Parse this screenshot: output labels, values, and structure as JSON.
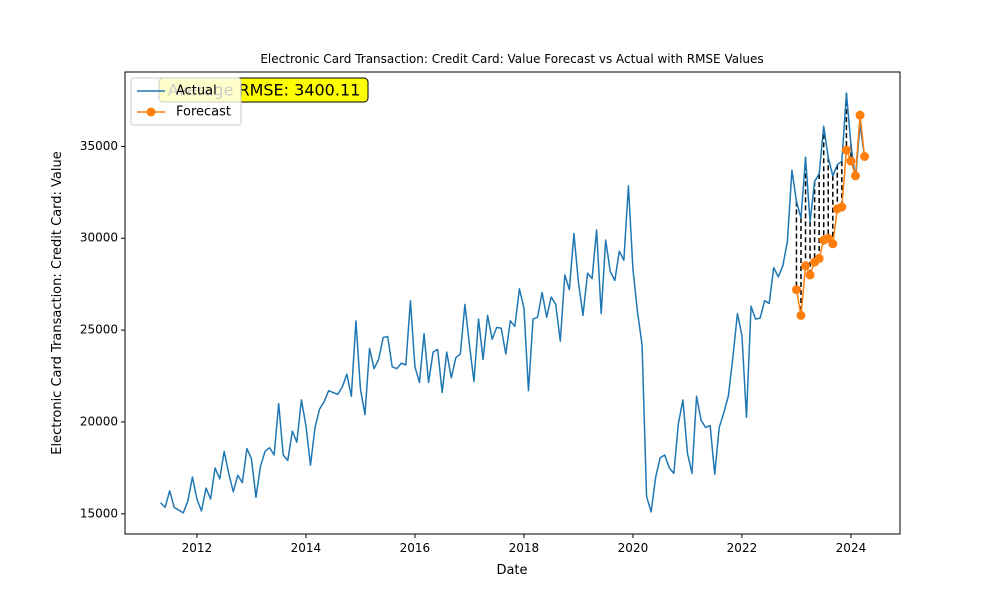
{
  "chart_data": {
    "type": "line",
    "title": "Electronic Card Transaction: Credit Card: Value Forecast vs Actual with RMSE Values",
    "x_label": "Date",
    "y_label": "Electronic Card Transaction: Credit Card: Value",
    "annotation": "Average RMSE: 3400.11",
    "legend": "upper left",
    "xlim": [
      2010.68,
      2024.9
    ],
    "xticks": [
      2012,
      2014,
      2016,
      2018,
      2020,
      2022,
      2024
    ],
    "ylim": [
      13900,
      39050
    ],
    "yticks": [
      15000,
      20000,
      25000,
      30000,
      35000
    ],
    "series": [
      {
        "name": "Actual",
        "color": "#1f77b4",
        "x": [
          2011.333,
          2011.417,
          2011.5,
          2011.583,
          2011.667,
          2011.75,
          2011.833,
          2011.917,
          2012,
          2012.083,
          2012.167,
          2012.25,
          2012.333,
          2012.417,
          2012.5,
          2012.583,
          2012.667,
          2012.75,
          2012.833,
          2012.917,
          2013,
          2013.083,
          2013.167,
          2013.25,
          2013.333,
          2013.417,
          2013.5,
          2013.583,
          2013.667,
          2013.75,
          2013.833,
          2013.917,
          2014,
          2014.083,
          2014.167,
          2014.25,
          2014.333,
          2014.417,
          2014.5,
          2014.583,
          2014.667,
          2014.75,
          2014.833,
          2014.917,
          2015,
          2015.083,
          2015.167,
          2015.25,
          2015.333,
          2015.417,
          2015.5,
          2015.583,
          2015.667,
          2015.75,
          2015.833,
          2015.917,
          2016,
          2016.083,
          2016.167,
          2016.25,
          2016.333,
          2016.417,
          2016.5,
          2016.583,
          2016.667,
          2016.75,
          2016.833,
          2016.917,
          2017,
          2017.083,
          2017.167,
          2017.25,
          2017.333,
          2017.417,
          2017.5,
          2017.583,
          2017.667,
          2017.75,
          2017.833,
          2017.917,
          2018,
          2018.083,
          2018.167,
          2018.25,
          2018.333,
          2018.417,
          2018.5,
          2018.583,
          2018.667,
          2018.75,
          2018.833,
          2018.917,
          2019,
          2019.083,
          2019.167,
          2019.25,
          2019.333,
          2019.417,
          2019.5,
          2019.583,
          2019.667,
          2019.75,
          2019.833,
          2019.917,
          2020,
          2020.083,
          2020.167,
          2020.25,
          2020.333,
          2020.417,
          2020.5,
          2020.583,
          2020.667,
          2020.75,
          2020.833,
          2020.917,
          2021,
          2021.083,
          2021.167,
          2021.25,
          2021.333,
          2021.417,
          2021.5,
          2021.583,
          2021.667,
          2021.75,
          2021.833,
          2021.917,
          2022,
          2022.083,
          2022.167,
          2022.25,
          2022.333,
          2022.417,
          2022.5,
          2022.583,
          2022.667,
          2022.75,
          2022.833,
          2022.917,
          2023,
          2023.083,
          2023.167,
          2023.25,
          2023.333,
          2023.417,
          2023.5,
          2023.583,
          2023.667,
          2023.75,
          2023.833,
          2023.917,
          2024,
          2024.083,
          2024.167,
          2024.25
        ],
        "values": [
          15600,
          15350,
          16250,
          15350,
          15200,
          15050,
          15700,
          17000,
          15800,
          15150,
          16400,
          15800,
          17500,
          16900,
          18400,
          17200,
          16200,
          17100,
          16700,
          18550,
          18000,
          15900,
          17600,
          18400,
          18600,
          18200,
          21000,
          18200,
          17900,
          19500,
          18900,
          21200,
          19800,
          17650,
          19700,
          20700,
          21100,
          21700,
          21600,
          21500,
          21900,
          22600,
          21400,
          25500,
          21800,
          20400,
          24000,
          22900,
          23400,
          24600,
          24650,
          23000,
          22900,
          23200,
          23100,
          26600,
          23000,
          22150,
          24800,
          22150,
          23800,
          23950,
          21600,
          23800,
          22400,
          23500,
          23700,
          26400,
          24200,
          22200,
          25600,
          23400,
          25800,
          24500,
          25150,
          25100,
          23700,
          25500,
          25200,
          27250,
          26200,
          21700,
          25600,
          25700,
          27050,
          25700,
          26800,
          26400,
          24400,
          28000,
          27200,
          30250,
          27600,
          25800,
          28100,
          27800,
          30450,
          25900,
          29900,
          28200,
          27700,
          29300,
          28800,
          32850,
          28300,
          26000,
          24200,
          15950,
          15100,
          17000,
          18050,
          18200,
          17500,
          17200,
          19900,
          21200,
          18300,
          17200,
          21400,
          20100,
          19700,
          19800,
          17150,
          19700,
          20500,
          21400,
          23500,
          25900,
          24700,
          20250,
          26300,
          25600,
          25650,
          26600,
          26450,
          28400,
          27900,
          28500,
          29800,
          33700,
          32000,
          31100,
          34400,
          30900,
          33100,
          33500,
          36100,
          34400,
          33400,
          34000,
          34200,
          37900,
          35100,
          33200,
          36200,
          34400
        ]
      },
      {
        "name": "Forecast",
        "color": "#ff7f0e",
        "marker": "o",
        "x": [
          2023,
          2023.083,
          2023.167,
          2023.25,
          2023.333,
          2023.417,
          2023.5,
          2023.583,
          2023.667,
          2023.75,
          2023.833,
          2023.917,
          2024,
          2024.083,
          2024.167,
          2024.25
        ],
        "values": [
          27200,
          25800,
          28500,
          28000,
          28700,
          28900,
          29900,
          30000,
          29700,
          31600,
          31700,
          34800,
          34200,
          33400,
          36700,
          34450
        ]
      }
    ]
  }
}
